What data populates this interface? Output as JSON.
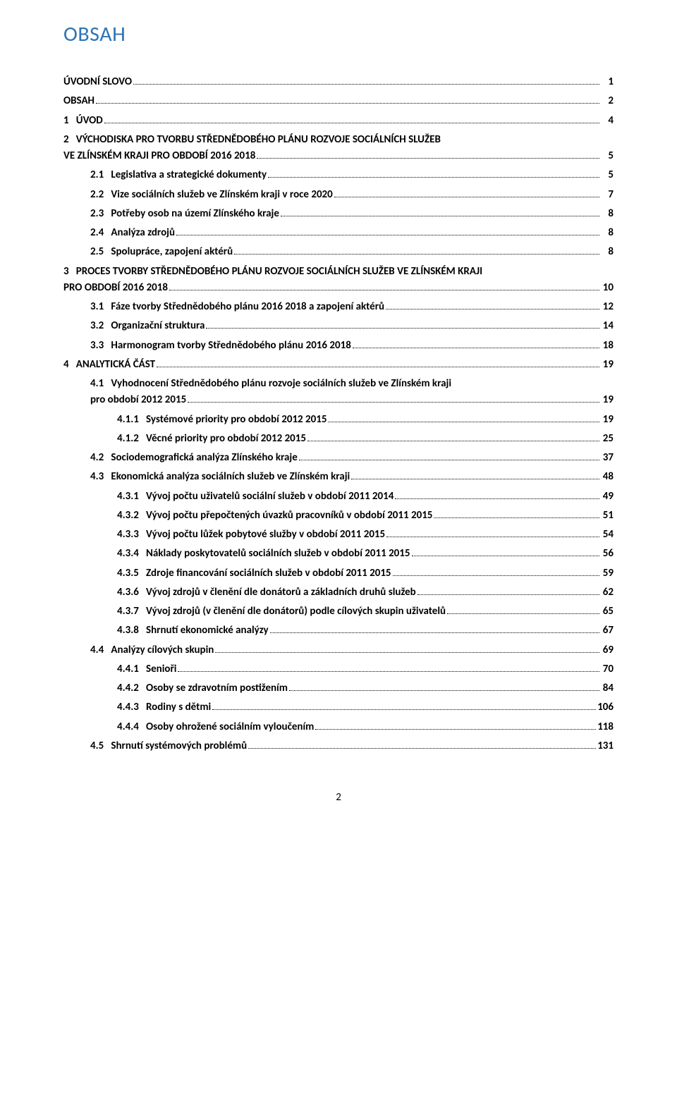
{
  "title": "OBSAH",
  "colors": {
    "title": "#2e74b5",
    "text": "#000000",
    "background": "#ffffff"
  },
  "typography": {
    "title_fontsize": 30,
    "entry_fontsize": 15,
    "font_family": "Calibri"
  },
  "page_number": "2",
  "toc": [
    {
      "num": "",
      "label": "ÚVODNÍ SLOVO",
      "page": "1",
      "level": 0
    },
    {
      "num": "",
      "label": "OBSAH",
      "page": "2",
      "level": 0
    },
    {
      "num": "1",
      "label": "ÚVOD",
      "page": "4",
      "level": 0
    },
    {
      "num": "2",
      "label_line1": "VÝCHODISKA PRO TVORBU STŘEDNĚDOBÉHO PLÁNU ROZVOJE SOCIÁLNÍCH SLUŽEB",
      "label_line2": "VE ZLÍNSKÉM KRAJI PRO OBDOBÍ 2016 2018",
      "page": "5",
      "level": 0,
      "wrap": true
    },
    {
      "num": "2.1",
      "label": "Legislativa a strategické dokumenty",
      "page": "5",
      "level": 1
    },
    {
      "num": "2.2",
      "label": "Vize sociálních služeb ve Zlínském kraji v roce 2020",
      "page": "7",
      "level": 1
    },
    {
      "num": "2.3",
      "label": "Potřeby osob na území Zlínského kraje",
      "page": "8",
      "level": 1
    },
    {
      "num": "2.4",
      "label": "Analýza zdrojů",
      "page": "8",
      "level": 1
    },
    {
      "num": "2.5",
      "label": "Spolupráce, zapojení aktérů",
      "page": "8",
      "level": 1
    },
    {
      "num": "3",
      "label_line1": "PROCES TVORBY STŘEDNĚDOBÉHO PLÁNU ROZVOJE SOCIÁLNÍCH SLUŽEB VE ZLÍNSKÉM KRAJI",
      "label_line2": "PRO OBDOBÍ 2016 2018",
      "page": "10",
      "level": 0,
      "wrap": true
    },
    {
      "num": "3.1",
      "label": "Fáze tvorby Střednědobého plánu 2016 2018 a zapojení aktérů",
      "page": "12",
      "level": 1
    },
    {
      "num": "3.2",
      "label": "Organizační struktura",
      "page": "14",
      "level": 1
    },
    {
      "num": "3.3",
      "label": "Harmonogram tvorby Střednědobého plánu 2016 2018",
      "page": "18",
      "level": 1
    },
    {
      "num": "4",
      "label": "ANALYTICKÁ ČÁST",
      "page": "19",
      "level": 0
    },
    {
      "num": "4.1",
      "label_line1": "Vyhodnocení Střednědobého plánu rozvoje sociálních služeb ve Zlínském kraji",
      "label_line2": "pro období 2012 2015",
      "page": "19",
      "level": 1,
      "wrap": true
    },
    {
      "num": "4.1.1",
      "label": "Systémové priority pro období 2012 2015",
      "page": "19",
      "level": 2
    },
    {
      "num": "4.1.2",
      "label": "Věcné priority pro období 2012 2015",
      "page": "25",
      "level": 2
    },
    {
      "num": "4.2",
      "label": "Sociodemografická analýza Zlínského kraje",
      "page": "37",
      "level": 1
    },
    {
      "num": "4.3",
      "label": "Ekonomická analýza sociálních služeb ve Zlínském kraji",
      "page": "48",
      "level": 1
    },
    {
      "num": "4.3.1",
      "label": "Vývoj počtu uživatelů sociální služeb v období 2011 2014",
      "page": "49",
      "level": 2
    },
    {
      "num": "4.3.2",
      "label": "Vývoj počtu přepočtených úvazků pracovníků v období 2011 2015",
      "page": "51",
      "level": 2
    },
    {
      "num": "4.3.3",
      "label": "Vývoj počtu lůžek pobytové služby v období 2011 2015",
      "page": "54",
      "level": 2
    },
    {
      "num": "4.3.4",
      "label": "Náklady poskytovatelů sociálních služeb v období 2011 2015",
      "page": "56",
      "level": 2
    },
    {
      "num": "4.3.5",
      "label": "Zdroje financování sociálních služeb v období 2011 2015",
      "page": "59",
      "level": 2
    },
    {
      "num": "4.3.6",
      "label": "Vývoj zdrojů v členění dle donátorů a základních druhů služeb",
      "page": "62",
      "level": 2
    },
    {
      "num": "4.3.7",
      "label": "Vývoj zdrojů (v členění dle donátorů) podle cílových skupin uživatelů",
      "page": "65",
      "level": 2
    },
    {
      "num": "4.3.8",
      "label": "Shrnutí ekonomické analýzy",
      "page": "67",
      "level": 2
    },
    {
      "num": "4.4",
      "label": "Analýzy cílových skupin",
      "page": "69",
      "level": 1
    },
    {
      "num": "4.4.1",
      "label": "Senioři",
      "page": "70",
      "level": 2
    },
    {
      "num": "4.4.2",
      "label": "Osoby se zdravotním postižením",
      "page": "84",
      "level": 2
    },
    {
      "num": "4.4.3",
      "label": "Rodiny s dětmi",
      "page": "106",
      "level": 2
    },
    {
      "num": "4.4.4",
      "label": "Osoby ohrožené sociálním vyloučením",
      "page": "118",
      "level": 2
    },
    {
      "num": "4.5",
      "label": "Shrnutí systémových problémů",
      "page": "131",
      "level": 1
    }
  ]
}
